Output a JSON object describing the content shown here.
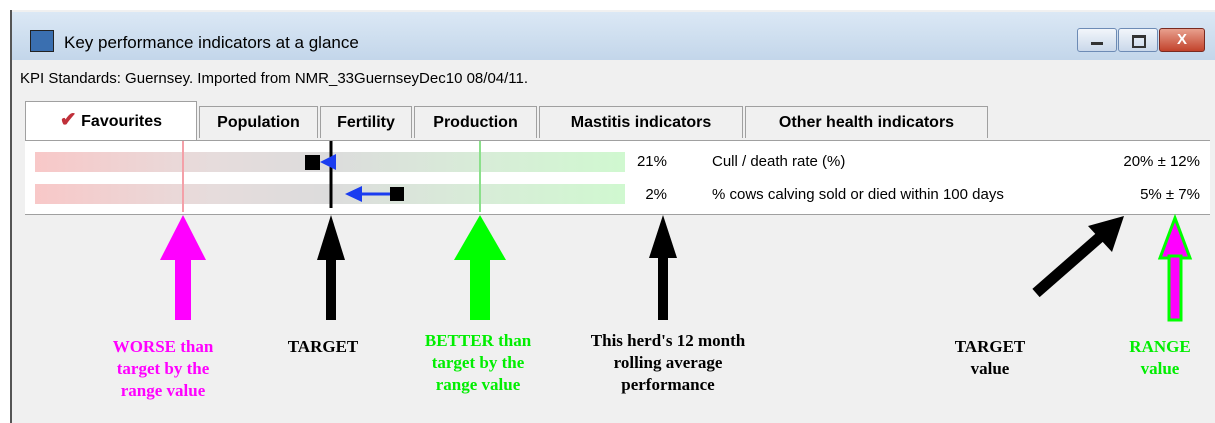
{
  "window": {
    "title": "Key performance indicators at a glance"
  },
  "info_line": "KPI Standards: Guernsey. Imported from NMR_33GuernseyDec10 08/04/11.",
  "tabs": [
    "Favourites",
    "Population",
    "Fertility",
    "Production",
    "Mastitis indicators",
    "Other health indicators"
  ],
  "kpi_rows": [
    {
      "value": "21%",
      "label": "Cull / death rate (%)",
      "target": "20% ± 12%"
    },
    {
      "value": "2%",
      "label": "% cows calving sold or died within 100 days",
      "target": "5% ± 7%"
    }
  ],
  "annotations": [
    {
      "lines": [
        "WORSE than",
        "target by the",
        "range value"
      ]
    },
    {
      "lines": [
        "TARGET"
      ]
    },
    {
      "lines": [
        "BETTER than",
        "target by the",
        "range value"
      ]
    },
    {
      "lines": [
        "This herd's 12 month",
        "rolling average",
        "performance"
      ]
    },
    {
      "lines": [
        "TARGET",
        "value"
      ]
    },
    {
      "lines": [
        "RANGE",
        "value"
      ]
    }
  ]
}
